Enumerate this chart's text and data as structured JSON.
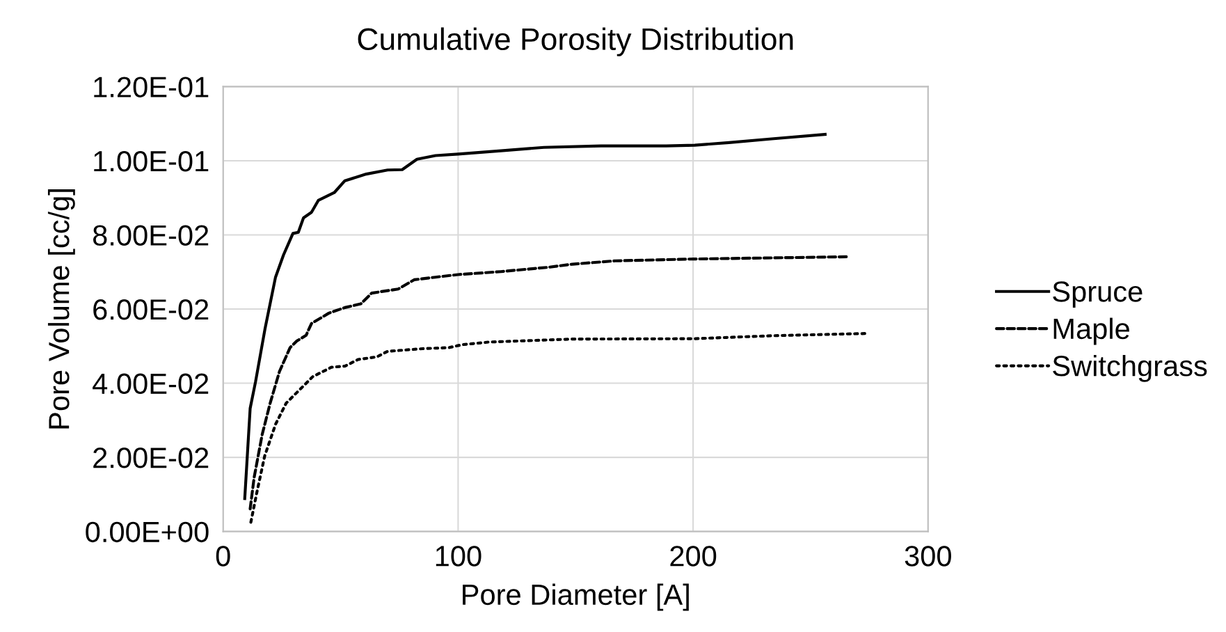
{
  "chart_data": {
    "type": "line",
    "title": "Cumulative Porosity Distribution",
    "xlabel": "Pore Diameter [A]",
    "ylabel": "Pore Volume [cc/g]",
    "xlim": [
      0,
      300
    ],
    "xticks": [
      0,
      100,
      200,
      300
    ],
    "ylim": [
      0,
      0.12
    ],
    "yticks": [
      {
        "value": 0,
        "label": "0.00E+00"
      },
      {
        "value": 0.02,
        "label": "2.00E-02"
      },
      {
        "value": 0.04,
        "label": "4.00E-02"
      },
      {
        "value": 0.06,
        "label": "6.00E-02"
      },
      {
        "value": 0.08,
        "label": "8.00E-02"
      },
      {
        "value": 0.1,
        "label": "1.00E-01"
      },
      {
        "value": 0.12,
        "label": "1.20E-01"
      }
    ],
    "grid": true,
    "legend": "right",
    "marker": "none",
    "series": [
      {
        "name": "Spruce",
        "color": "#000000",
        "line_style": "solid",
        "x": [
          9.2,
          11.5,
          13.8,
          17.8,
          22.3,
          25.7,
          29.7,
          32.0,
          34.2,
          37.6,
          40.5,
          47.3,
          51.8,
          60.9,
          70.0,
          76.2,
          82.5,
          90.4,
          100,
          118.2,
          136.5,
          160.8,
          188.5,
          200.7,
          215.3,
          233.4,
          256.2
        ],
        "values": [
          0.0089,
          0.0332,
          0.0404,
          0.0546,
          0.0686,
          0.0746,
          0.0804,
          0.0807,
          0.0846,
          0.0861,
          0.0893,
          0.0914,
          0.0946,
          0.0964,
          0.0975,
          0.0976,
          0.1004,
          0.1014,
          0.1018,
          0.1027,
          0.1036,
          0.104,
          0.104,
          0.1042,
          0.1049,
          0.1059,
          0.1071
        ]
      },
      {
        "name": "Maple",
        "color": "#000000",
        "line_style": "dashed",
        "x": [
          11.5,
          13.2,
          16.6,
          20.0,
          24.0,
          28.5,
          31.4,
          35.3,
          37.6,
          45.0,
          51.8,
          58.6,
          63.2,
          74.5,
          81.3,
          90.4,
          100,
          118.2,
          138.9,
          148.6,
          166.8,
          200.3,
          233.4,
          265.2
        ],
        "values": [
          0.0061,
          0.0146,
          0.0261,
          0.0346,
          0.0432,
          0.0496,
          0.0514,
          0.0529,
          0.0561,
          0.0589,
          0.0604,
          0.0614,
          0.0643,
          0.0654,
          0.0679,
          0.0686,
          0.0693,
          0.0701,
          0.0713,
          0.0721,
          0.073,
          0.0735,
          0.0738,
          0.0741
        ]
      },
      {
        "name": "Switchgrass",
        "color": "#000000",
        "line_style": "dotted",
        "x": [
          11.8,
          14.3,
          17.7,
          22.3,
          26.8,
          31.4,
          38.2,
          46.1,
          51.8,
          57.5,
          65.4,
          70.0,
          84.7,
          96.1,
          101.8,
          113.1,
          148.6,
          200.3,
          233.4,
          273.4
        ],
        "values": [
          0.0025,
          0.0104,
          0.0204,
          0.0289,
          0.0346,
          0.0375,
          0.0418,
          0.0443,
          0.0446,
          0.0464,
          0.0471,
          0.0486,
          0.0493,
          0.0496,
          0.0504,
          0.0511,
          0.0519,
          0.052,
          0.0528,
          0.0534
        ]
      }
    ]
  }
}
